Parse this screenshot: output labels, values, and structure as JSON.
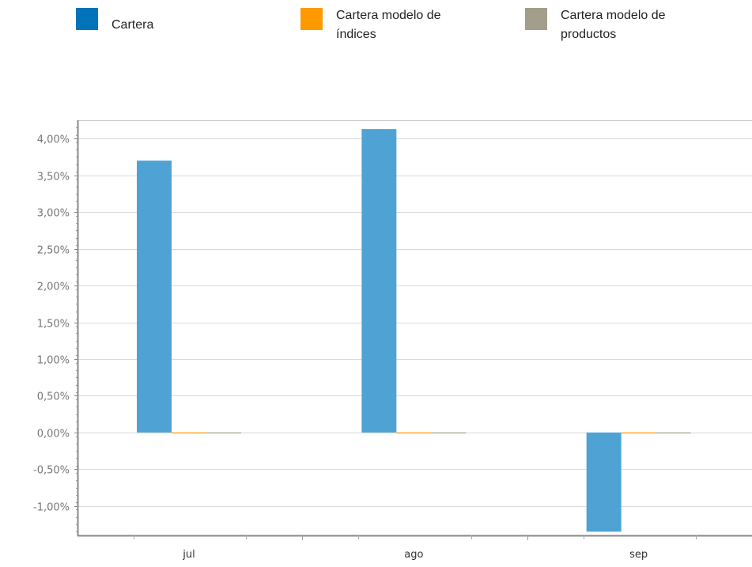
{
  "chart_data": {
    "type": "bar",
    "categories": [
      "jul",
      "ago",
      "sep"
    ],
    "series": [
      {
        "name": "Cartera",
        "color": "#0073b9",
        "bar_color": "#4fa3d4",
        "values": [
          3.7,
          4.13,
          -1.35
        ]
      },
      {
        "name": "Cartera modelo de índices",
        "color": "#ff9900",
        "bar_color": "#ff9900",
        "values": [
          0,
          0,
          0
        ]
      },
      {
        "name": "Cartera modelo de productos",
        "color": "#a39e8c",
        "bar_color": "#a39e8c",
        "values": [
          0,
          0,
          0
        ]
      }
    ],
    "ylim": [
      -1.4,
      4.25
    ],
    "yticks": [
      4.0,
      3.5,
      3.0,
      2.5,
      2.0,
      1.5,
      1.0,
      0.5,
      0.0,
      -0.5,
      -1.0
    ],
    "ytick_labels": [
      "4,00%",
      "3,50%",
      "3,00%",
      "2,50%",
      "2,00%",
      "1,50%",
      "1,00%",
      "0,50%",
      "0,00%",
      "-0,50%",
      "-1,00%"
    ],
    "grid": true,
    "legend_position": "top"
  }
}
